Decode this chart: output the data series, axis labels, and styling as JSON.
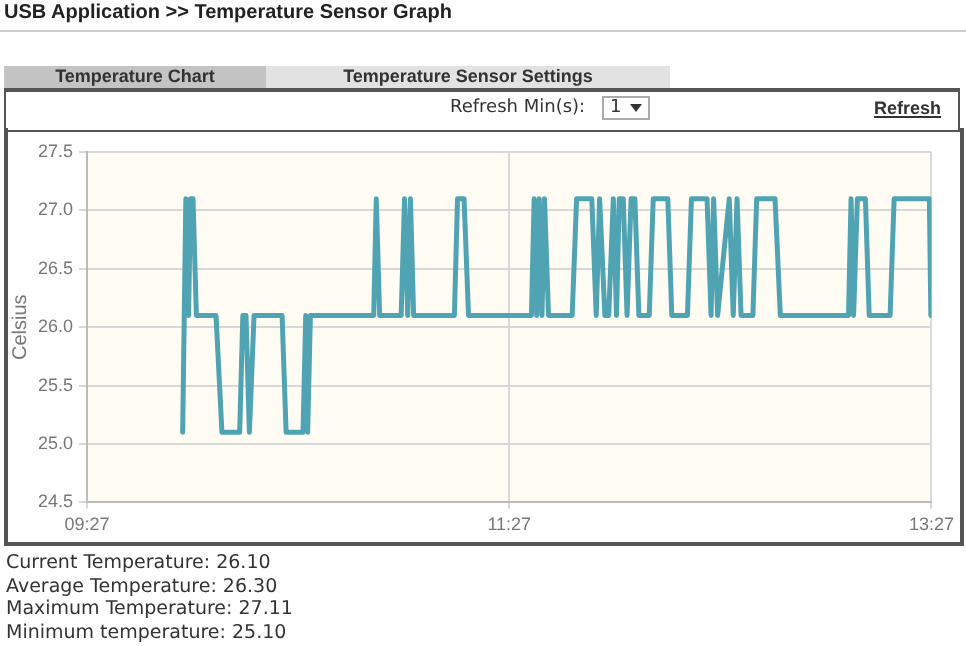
{
  "chart_data": {
    "type": "line",
    "title": "USB Application >> Temperature Sensor Graph",
    "ylabel": "Celsius",
    "annotations": [
      "Temperature Chart",
      "Temperature Sensor Settings",
      "Refresh Min(s):",
      "1",
      "Refresh",
      "Current Temperature: 26.10",
      "Average Temperature: 26.30",
      "Maximum Temperature: 27.11",
      "Minimum temperature: 25.10"
    ],
    "x": [
      9.903,
      9.918,
      9.931,
      9.94,
      9.952,
      9.968,
      10.061,
      10.089,
      10.173,
      10.188,
      10.203,
      10.219,
      10.241,
      10.374,
      10.393,
      10.473,
      10.486,
      10.495,
      10.508,
      10.808,
      10.82,
      10.836,
      10.938,
      10.954,
      10.969,
      10.982,
      10.997,
      11.19,
      11.205,
      11.236,
      11.257,
      11.555,
      11.568,
      11.58,
      11.592,
      11.605,
      11.617,
      11.636,
      11.748,
      11.769,
      11.841,
      11.862,
      11.878,
      11.903,
      11.921,
      11.943,
      11.958,
      11.971,
      11.99,
      12.008,
      12.027,
      12.045,
      12.064,
      12.113,
      12.132,
      12.201,
      12.22,
      12.294,
      12.313,
      12.387,
      12.406,
      12.418,
      12.437,
      12.492,
      12.511,
      12.529,
      12.548,
      12.604,
      12.622,
      12.709,
      12.734,
      13.057,
      13.069,
      13.081,
      13.099,
      13.137,
      13.155,
      13.254,
      13.273,
      13.44,
      13.447
    ],
    "series": [
      {
        "color": "#4fa3b3",
        "values": [
          25.1,
          27.1,
          26.1,
          27.1,
          27.1,
          26.1,
          26.1,
          25.1,
          25.1,
          26.1,
          26.1,
          25.1,
          26.1,
          26.1,
          25.1,
          25.1,
          26.1,
          25.1,
          26.1,
          26.1,
          27.1,
          26.1,
          26.1,
          27.1,
          26.1,
          27.1,
          26.1,
          26.1,
          27.1,
          27.1,
          26.1,
          26.1,
          27.1,
          26.1,
          27.1,
          26.1,
          27.1,
          26.1,
          26.1,
          27.1,
          27.1,
          26.1,
          27.1,
          26.1,
          26.1,
          27.1,
          26.1,
          27.1,
          27.1,
          26.1,
          27.1,
          27.1,
          26.1,
          26.1,
          27.1,
          27.1,
          26.1,
          26.1,
          27.1,
          27.1,
          26.1,
          27.1,
          26.1,
          27.1,
          26.1,
          27.1,
          26.1,
          26.1,
          27.1,
          27.1,
          26.1,
          26.1,
          27.1,
          26.1,
          27.1,
          27.1,
          26.1,
          26.1,
          27.1,
          27.1,
          26.1
        ]
      }
    ],
    "xlim": [
      9.45,
      13.45
    ],
    "xticks": [
      {
        "value": 9.45,
        "label": "09:27"
      },
      {
        "value": 11.45,
        "label": "11:27"
      },
      {
        "value": 13.45,
        "label": "13:27"
      }
    ],
    "ylim": [
      24.5,
      27.5
    ],
    "yticks": [
      {
        "value": 24.5,
        "label": "24.5"
      },
      {
        "value": 25,
        "label": "25.0"
      },
      {
        "value": 25.5,
        "label": "25.5"
      },
      {
        "value": 26,
        "label": "26.0"
      },
      {
        "value": 26.5,
        "label": "26.5"
      },
      {
        "value": 27,
        "label": "27.0"
      },
      {
        "value": 27.5,
        "label": "27.5"
      }
    ],
    "grid": true,
    "legend": false,
    "marker": "none",
    "line_style": "solid"
  }
}
